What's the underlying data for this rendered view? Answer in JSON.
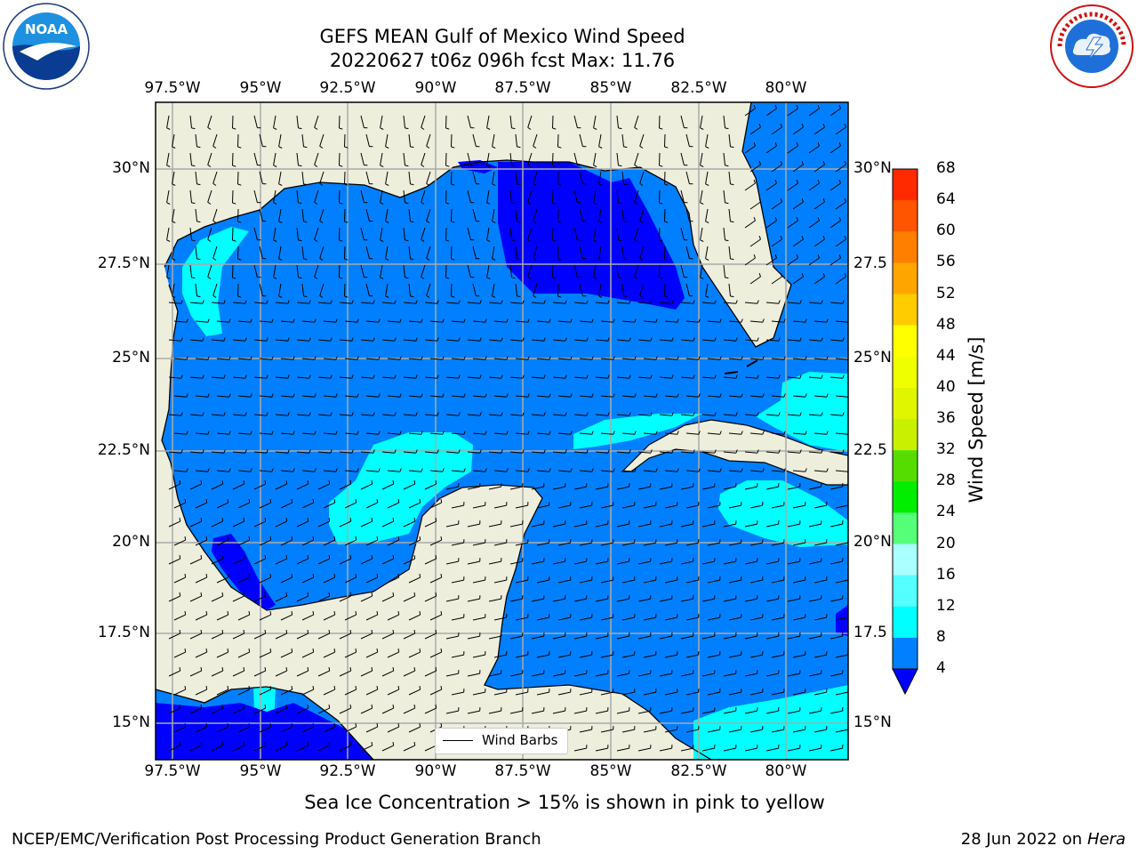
{
  "title": {
    "line1": "GEFS MEAN Gulf of Mexico Wind Speed",
    "line2": "20220627 t06z 096h fcst   Max: 11.76"
  },
  "logos": {
    "left": {
      "name": "noaa-logo",
      "text": "NOAA"
    },
    "right": {
      "name": "nws-logo",
      "ring_text": "NATIONAL WEATHER SERVICE"
    }
  },
  "map": {
    "lon_labels": [
      "97.5°W",
      "95°W",
      "92.5°W",
      "90°W",
      "87.5°W",
      "85°W",
      "82.5°W",
      "80°W"
    ],
    "lat_labels_left": [
      "30°N",
      "27.5°N",
      "25°N",
      "22.5°N",
      "20°N",
      "17.5°N",
      "15°N"
    ],
    "lat_labels_right": [
      "30°N",
      "27.5",
      "25°N",
      "22.5",
      "20°N",
      "17.5",
      "15°N"
    ],
    "legend_label": "Wind Barbs"
  },
  "colorbar": {
    "label": "Wind Speed [m/s]",
    "ticks": [
      "68",
      "64",
      "60",
      "56",
      "52",
      "48",
      "44",
      "40",
      "36",
      "32",
      "28",
      "24",
      "20",
      "16",
      "12",
      "8",
      "4"
    ],
    "colors": [
      "#ff0000",
      "#ff2a00",
      "#ff5500",
      "#ff7f00",
      "#ffa500",
      "#ffcc00",
      "#ffff00",
      "#f0ff00",
      "#e0f500",
      "#c8f000",
      "#55dd00",
      "#00ee00",
      "#55ff77",
      "#aaffff",
      "#55ffff",
      "#00ffff",
      "#0080ff"
    ],
    "under_color": "#0000ff"
  },
  "footer": {
    "note": "Sea Ice Concentration > 15% is shown in pink to yellow",
    "branch": "NCEP/EMC/Verification Post Processing Product Generation Branch",
    "date": "28 Jun 2022 on",
    "machine": "Hera"
  },
  "colors": {
    "land": "#eeeedd",
    "wind_4_8": "#0080ff",
    "wind_8_12": "#00ffff",
    "wind_under_4": "#0000ff",
    "grid": "#aaaaaa"
  }
}
